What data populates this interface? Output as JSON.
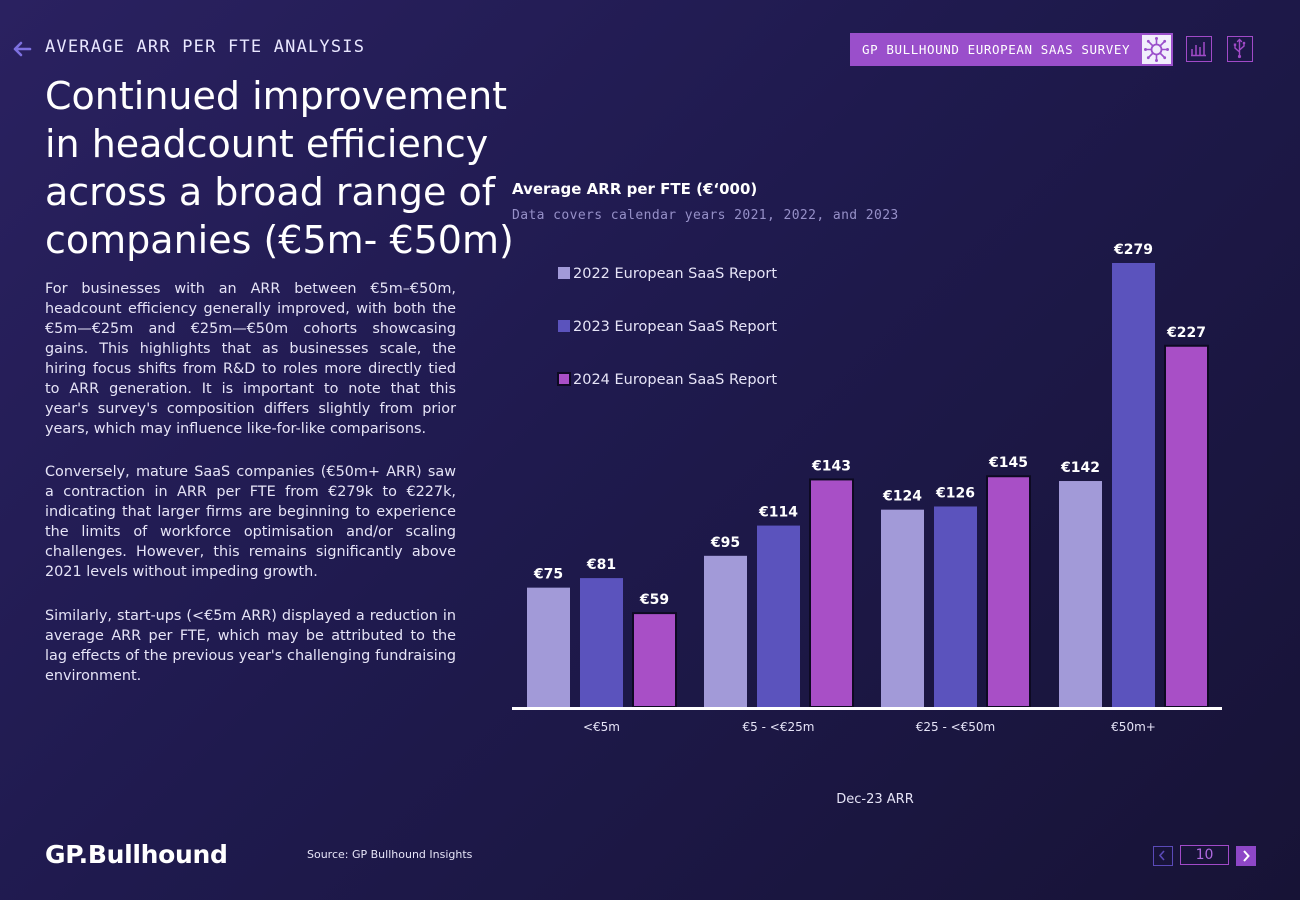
{
  "header": {
    "section_title": "AVERAGE ARR PER FTE ANALYSIS",
    "survey_label": "GP BULLHOUND EUROPEAN SAAS SURVEY",
    "icons": [
      "back-arrow-icon",
      "virus-icon",
      "bar-chart-icon",
      "usb-icon"
    ]
  },
  "headline": "Continued improvement in headcount efficiency across a broad range of companies (€5m- €50m)",
  "paragraphs": [
    "For businesses with an ARR between €5m–€50m, headcount efficiency generally improved, with both the €5m—€25m and €25m—€50m cohorts showcasing gains. This highlights that as businesses scale, the hiring focus shifts from R&D to roles more directly tied to ARR generation. It is important to note that this year's survey's composition differs slightly from prior years, which may influence like-for-like comparisons.",
    "Conversely, mature SaaS companies (€50m+ ARR) saw a contraction in ARR per FTE from €279k to €227k, indicating that larger firms are beginning to experience the limits of workforce optimisation and/or scaling challenges. However, this remains significantly above 2021 levels without impeding growth.",
    "Similarly, start-ups (<€5m ARR) displayed a reduction in average ARR per FTE, which may be attributed to the lag effects of the previous year's challenging fundraising environment."
  ],
  "chart_data": {
    "type": "bar",
    "title": "Average ARR per FTE (€‘000)",
    "subtitle": "Data covers calendar years 2021, 2022, and 2023",
    "xlabel": "Dec-23 ARR",
    "ylabel": "",
    "categories": [
      "<€5m",
      "€5 - <€25m",
      "€25 - <€50m",
      "€50m+"
    ],
    "series": [
      {
        "name": "2022 European SaaS Report",
        "values": [
          75,
          95,
          124,
          142
        ],
        "labels": [
          "€75",
          "€95",
          "€124",
          "€142"
        ],
        "color": "#a29ad8"
      },
      {
        "name": "2023 European SaaS Report",
        "values": [
          81,
          114,
          126,
          279
        ],
        "labels": [
          "€81",
          "€114",
          "€126",
          "€279"
        ],
        "color": "#5b53bd"
      },
      {
        "name": "2024 European SaaS Report",
        "values": [
          59,
          143,
          145,
          227
        ],
        "labels": [
          "€59",
          "€143",
          "€145",
          "€227"
        ],
        "color": "#a84fc6"
      }
    ],
    "ylim": [
      0,
      279
    ],
    "grid": false,
    "legend_position": "top-left"
  },
  "footer": {
    "logo": "GP.Bullhound",
    "source": "Source: GP Bullhound Insights",
    "page_number": "10"
  }
}
